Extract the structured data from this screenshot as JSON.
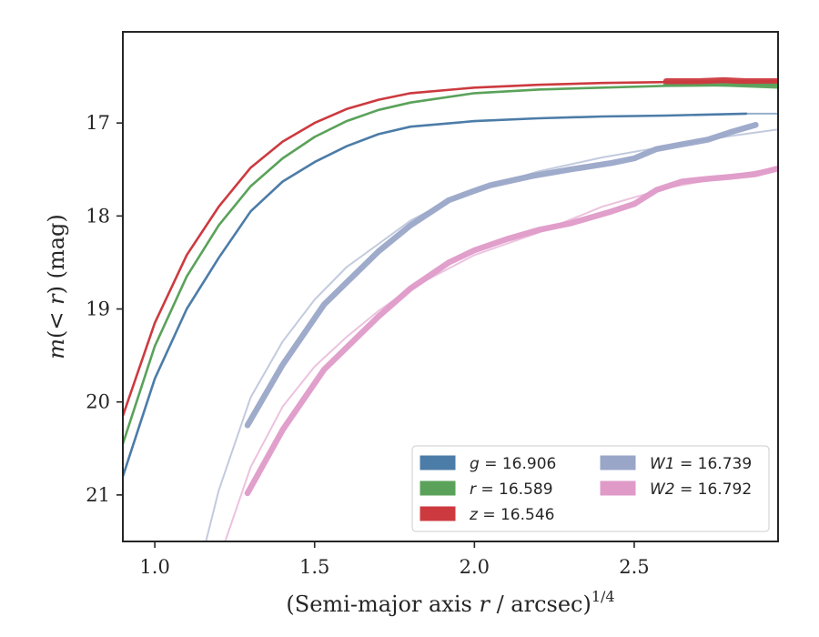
{
  "chart_data": {
    "type": "line",
    "xlabel_main": "(Semi-major axis ",
    "xlabel_var": "r",
    "xlabel_unit": " / arcsec)",
    "xlabel_exp": "1/4",
    "ylabel_var": "m",
    "ylabel_mid": "(< ",
    "ylabel_var2": "r",
    "ylabel_end": ") (mag)",
    "xlim": [
      0.9,
      2.95
    ],
    "ylim": [
      21.5,
      16.02
    ],
    "y_inverted": true,
    "xticks": [
      "1.0",
      "1.5",
      "2.0",
      "2.5"
    ],
    "xtick_values": [
      1.0,
      1.5,
      2.0,
      2.5
    ],
    "yticks": [
      "17",
      "18",
      "19",
      "20",
      "21"
    ],
    "ytick_values": [
      17,
      18,
      19,
      20,
      21
    ],
    "grid": false,
    "legend_position": "lower-right",
    "legend": [
      {
        "band": "g",
        "value": "16.906",
        "color": "#4c7ca8"
      },
      {
        "band": "r",
        "value": "16.589",
        "color": "#5aa25a"
      },
      {
        "band": "z",
        "value": "16.546",
        "color": "#cc3a3f"
      },
      {
        "band": "W1",
        "value": "16.739",
        "color": "#9aa6c8"
      },
      {
        "band": "W2",
        "value": "16.792",
        "color": "#df9ac8"
      }
    ],
    "series": [
      {
        "name": "g",
        "style": "model",
        "color": "#4c7ca8",
        "x": [
          0.9,
          1.0,
          1.1,
          1.2,
          1.3,
          1.4,
          1.5,
          1.6,
          1.7,
          1.8,
          2.0,
          2.2,
          2.4,
          2.6,
          2.85
        ],
        "y": [
          20.8,
          19.75,
          19.0,
          18.45,
          17.95,
          17.63,
          17.42,
          17.25,
          17.12,
          17.04,
          16.98,
          16.95,
          16.93,
          16.92,
          16.9
        ]
      },
      {
        "name": "g ext",
        "style": "faint",
        "color": "#4c7ca8",
        "x": [
          2.85,
          2.95
        ],
        "y": [
          16.9,
          16.9
        ]
      },
      {
        "name": "r",
        "style": "model",
        "color": "#5aa25a",
        "x": [
          0.9,
          1.0,
          1.1,
          1.2,
          1.3,
          1.4,
          1.5,
          1.6,
          1.7,
          1.8,
          2.0,
          2.2,
          2.4,
          2.6,
          2.95
        ],
        "y": [
          20.45,
          19.4,
          18.65,
          18.1,
          17.68,
          17.38,
          17.15,
          16.98,
          16.86,
          16.78,
          16.68,
          16.64,
          16.62,
          16.6,
          16.59
        ]
      },
      {
        "name": "z",
        "style": "model",
        "color": "#cc3a3f",
        "x": [
          0.9,
          1.0,
          1.1,
          1.2,
          1.3,
          1.4,
          1.5,
          1.6,
          1.7,
          1.8,
          2.0,
          2.2,
          2.4,
          2.6,
          2.95
        ],
        "y": [
          20.15,
          19.15,
          18.42,
          17.9,
          17.48,
          17.2,
          17.0,
          16.85,
          16.75,
          16.68,
          16.62,
          16.59,
          16.57,
          16.56,
          16.55
        ]
      },
      {
        "name": "r data",
        "style": "band",
        "color": "#5aa25a",
        "x": [
          2.6,
          2.7,
          2.8,
          2.95
        ],
        "y": [
          16.58,
          16.57,
          16.58,
          16.6
        ]
      },
      {
        "name": "z data",
        "style": "band",
        "color": "#cc3a3f",
        "x": [
          2.6,
          2.7,
          2.78,
          2.85,
          2.95
        ],
        "y": [
          16.55,
          16.55,
          16.54,
          16.55,
          16.55
        ]
      },
      {
        "name": "W1 model",
        "style": "faint",
        "color": "#9aa6c8",
        "x": [
          1.16,
          1.2,
          1.3,
          1.4,
          1.5,
          1.6,
          1.7,
          1.8,
          1.9,
          2.0,
          2.2,
          2.4,
          2.6,
          2.8,
          2.95
        ],
        "y": [
          21.5,
          20.95,
          19.95,
          19.35,
          18.9,
          18.55,
          18.3,
          18.05,
          17.87,
          17.73,
          17.52,
          17.37,
          17.25,
          17.14,
          17.07
        ]
      },
      {
        "name": "W1",
        "style": "band",
        "color": "#9aa6c8",
        "x": [
          1.29,
          1.4,
          1.53,
          1.7,
          1.8,
          1.92,
          2.0,
          2.05,
          2.18,
          2.3,
          2.43,
          2.5,
          2.57,
          2.65,
          2.73,
          2.8,
          2.88
        ],
        "y": [
          20.25,
          19.6,
          18.95,
          18.38,
          18.1,
          17.83,
          17.73,
          17.67,
          17.57,
          17.5,
          17.43,
          17.38,
          17.28,
          17.23,
          17.18,
          17.1,
          17.02
        ]
      },
      {
        "name": "W2 model",
        "style": "faint",
        "color": "#df9ac8",
        "x": [
          1.22,
          1.3,
          1.4,
          1.5,
          1.6,
          1.7,
          1.8,
          1.9,
          2.0,
          2.2,
          2.4,
          2.6,
          2.8,
          2.95
        ],
        "y": [
          21.5,
          20.7,
          20.05,
          19.62,
          19.3,
          19.02,
          18.78,
          18.6,
          18.42,
          18.18,
          17.9,
          17.7,
          17.57,
          17.48
        ]
      },
      {
        "name": "W2",
        "style": "band",
        "color": "#df9ac8",
        "x": [
          1.29,
          1.4,
          1.53,
          1.7,
          1.8,
          1.92,
          2.0,
          2.1,
          2.2,
          2.3,
          2.43,
          2.5,
          2.57,
          2.65,
          2.73,
          2.8,
          2.88,
          2.95
        ],
        "y": [
          20.98,
          20.3,
          19.65,
          19.08,
          18.78,
          18.5,
          18.37,
          18.25,
          18.15,
          18.08,
          17.95,
          17.87,
          17.72,
          17.63,
          17.6,
          17.58,
          17.55,
          17.49
        ]
      }
    ]
  }
}
